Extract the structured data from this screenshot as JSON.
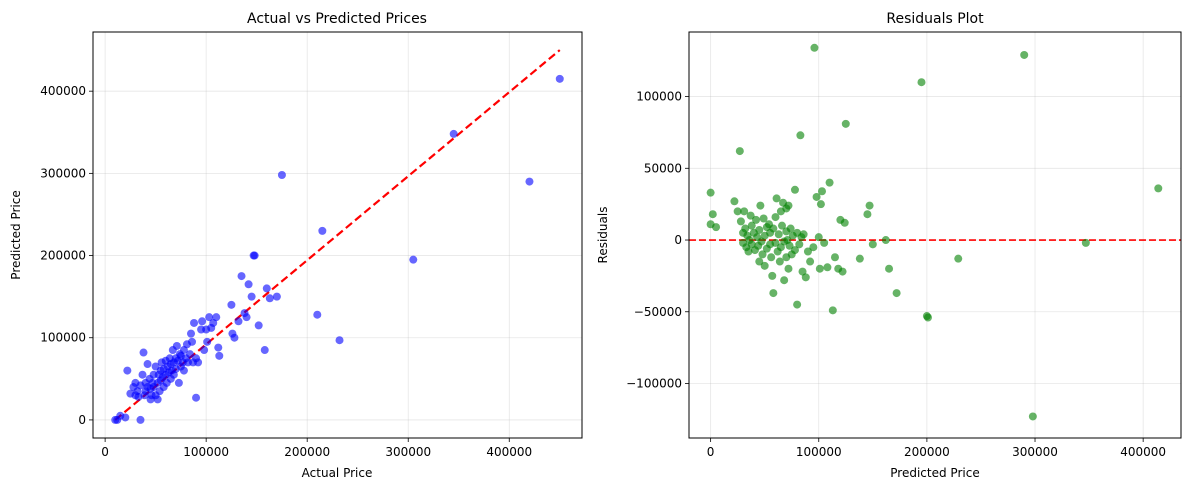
{
  "chart_data": [
    {
      "type": "scatter",
      "title": "Actual vs Predicted Prices",
      "xlabel": "Actual Price",
      "ylabel": "Predicted Price",
      "xlim": [
        -12000,
        472000
      ],
      "ylim": [
        -22000,
        472000
      ],
      "xticks": [
        0,
        100000,
        200000,
        300000,
        400000
      ],
      "yticks": [
        0,
        100000,
        200000,
        300000,
        400000
      ],
      "xtick_labels": [
        "0",
        "100000",
        "200000",
        "300000",
        "400000"
      ],
      "ytick_labels": [
        "0",
        "100000",
        "200000",
        "300000",
        "400000"
      ],
      "grid": true,
      "point_color": "#0000ff",
      "line_color": "#ff0000",
      "reference_line": {
        "x": [
          10000,
          450000
        ],
        "y": [
          0,
          450000
        ]
      },
      "points": [
        {
          "x": 10000,
          "y": 0
        },
        {
          "x": 12000,
          "y": 0
        },
        {
          "x": 15000,
          "y": 5000
        },
        {
          "x": 20000,
          "y": 3000
        },
        {
          "x": 22000,
          "y": 60000
        },
        {
          "x": 25000,
          "y": 32000
        },
        {
          "x": 28000,
          "y": 40000
        },
        {
          "x": 30000,
          "y": 30000
        },
        {
          "x": 30000,
          "y": 45000
        },
        {
          "x": 32000,
          "y": 35000
        },
        {
          "x": 33000,
          "y": 28000
        },
        {
          "x": 35000,
          "y": 0
        },
        {
          "x": 35000,
          "y": 42000
        },
        {
          "x": 37000,
          "y": 55000
        },
        {
          "x": 38000,
          "y": 82000
        },
        {
          "x": 39000,
          "y": 30000
        },
        {
          "x": 40000,
          "y": 45000
        },
        {
          "x": 40000,
          "y": 35000
        },
        {
          "x": 42000,
          "y": 40000
        },
        {
          "x": 42000,
          "y": 68000
        },
        {
          "x": 44000,
          "y": 50000
        },
        {
          "x": 45000,
          "y": 38000
        },
        {
          "x": 45000,
          "y": 25000
        },
        {
          "x": 46000,
          "y": 30000
        },
        {
          "x": 47000,
          "y": 45000
        },
        {
          "x": 48000,
          "y": 55000
        },
        {
          "x": 48000,
          "y": 40000
        },
        {
          "x": 50000,
          "y": 30000
        },
        {
          "x": 50000,
          "y": 65000
        },
        {
          "x": 52000,
          "y": 45000
        },
        {
          "x": 52000,
          "y": 25000
        },
        {
          "x": 53000,
          "y": 55000
        },
        {
          "x": 54000,
          "y": 35000
        },
        {
          "x": 55000,
          "y": 60000
        },
        {
          "x": 55000,
          "y": 48000
        },
        {
          "x": 56000,
          "y": 70000
        },
        {
          "x": 57000,
          "y": 52000
        },
        {
          "x": 58000,
          "y": 40000
        },
        {
          "x": 58000,
          "y": 62000
        },
        {
          "x": 60000,
          "y": 72000
        },
        {
          "x": 60000,
          "y": 55000
        },
        {
          "x": 61000,
          "y": 45000
        },
        {
          "x": 62000,
          "y": 65000
        },
        {
          "x": 63000,
          "y": 58000
        },
        {
          "x": 64000,
          "y": 75000
        },
        {
          "x": 65000,
          "y": 50000
        },
        {
          "x": 65000,
          "y": 68000
        },
        {
          "x": 66000,
          "y": 60000
        },
        {
          "x": 67000,
          "y": 85000
        },
        {
          "x": 68000,
          "y": 70000
        },
        {
          "x": 68000,
          "y": 55000
        },
        {
          "x": 70000,
          "y": 75000
        },
        {
          "x": 70000,
          "y": 62000
        },
        {
          "x": 71000,
          "y": 90000
        },
        {
          "x": 72000,
          "y": 72000
        },
        {
          "x": 73000,
          "y": 45000
        },
        {
          "x": 74000,
          "y": 80000
        },
        {
          "x": 75000,
          "y": 65000
        },
        {
          "x": 75000,
          "y": 78000
        },
        {
          "x": 77000,
          "y": 70000
        },
        {
          "x": 78000,
          "y": 85000
        },
        {
          "x": 78000,
          "y": 60000
        },
        {
          "x": 80000,
          "y": 75000
        },
        {
          "x": 81000,
          "y": 92000
        },
        {
          "x": 82000,
          "y": 70000
        },
        {
          "x": 84000,
          "y": 80000
        },
        {
          "x": 85000,
          "y": 105000
        },
        {
          "x": 86000,
          "y": 95000
        },
        {
          "x": 87000,
          "y": 70000
        },
        {
          "x": 88000,
          "y": 118000
        },
        {
          "x": 90000,
          "y": 75000
        },
        {
          "x": 90000,
          "y": 27000
        },
        {
          "x": 92000,
          "y": 70000
        },
        {
          "x": 95000,
          "y": 110000
        },
        {
          "x": 96000,
          "y": 120000
        },
        {
          "x": 98000,
          "y": 85000
        },
        {
          "x": 100000,
          "y": 110000
        },
        {
          "x": 101000,
          "y": 95000
        },
        {
          "x": 103000,
          "y": 125000
        },
        {
          "x": 105000,
          "y": 112000
        },
        {
          "x": 107000,
          "y": 118000
        },
        {
          "x": 110000,
          "y": 125000
        },
        {
          "x": 112000,
          "y": 88000
        },
        {
          "x": 113000,
          "y": 78000
        },
        {
          "x": 125000,
          "y": 140000
        },
        {
          "x": 126000,
          "y": 105000
        },
        {
          "x": 128000,
          "y": 100000
        },
        {
          "x": 132000,
          "y": 120000
        },
        {
          "x": 135000,
          "y": 175000
        },
        {
          "x": 138000,
          "y": 130000
        },
        {
          "x": 140000,
          "y": 125000
        },
        {
          "x": 142000,
          "y": 165000
        },
        {
          "x": 145000,
          "y": 150000
        },
        {
          "x": 147000,
          "y": 200000
        },
        {
          "x": 148000,
          "y": 200000
        },
        {
          "x": 152000,
          "y": 115000
        },
        {
          "x": 158000,
          "y": 85000
        },
        {
          "x": 160000,
          "y": 160000
        },
        {
          "x": 163000,
          "y": 148000
        },
        {
          "x": 170000,
          "y": 150000
        },
        {
          "x": 175000,
          "y": 298000
        },
        {
          "x": 210000,
          "y": 128000
        },
        {
          "x": 215000,
          "y": 230000
        },
        {
          "x": 232000,
          "y": 97000
        },
        {
          "x": 305000,
          "y": 195000
        },
        {
          "x": 345000,
          "y": 348000
        },
        {
          "x": 420000,
          "y": 290000
        },
        {
          "x": 450000,
          "y": 415000
        }
      ]
    },
    {
      "type": "scatter",
      "title": "Residuals Plot",
      "xlabel": "Predicted Price",
      "ylabel": "Residuals",
      "xlim": [
        -20000,
        435000
      ],
      "ylim": [
        -138000,
        145000
      ],
      "xticks": [
        0,
        100000,
        200000,
        300000,
        400000
      ],
      "yticks": [
        -100000,
        -50000,
        0,
        50000,
        100000
      ],
      "xtick_labels": [
        "0",
        "100000",
        "200000",
        "300000",
        "400000"
      ],
      "ytick_labels": [
        "−100000",
        "−50000",
        "0",
        "50000",
        "100000"
      ],
      "grid": true,
      "point_color": "#008000",
      "line_color": "#ff0000",
      "reference_line": {
        "y": 0
      },
      "points": [
        {
          "x": 0,
          "y": 33000
        },
        {
          "x": 0,
          "y": 11000
        },
        {
          "x": 2000,
          "y": 18000
        },
        {
          "x": 5000,
          "y": 9000
        },
        {
          "x": 22000,
          "y": 27000
        },
        {
          "x": 25000,
          "y": 20000
        },
        {
          "x": 27000,
          "y": 62000
        },
        {
          "x": 28000,
          "y": 13000
        },
        {
          "x": 30000,
          "y": 5000
        },
        {
          "x": 30000,
          "y": -2000
        },
        {
          "x": 31000,
          "y": 20000
        },
        {
          "x": 32000,
          "y": 8000
        },
        {
          "x": 33000,
          "y": -5000
        },
        {
          "x": 34000,
          "y": 3000
        },
        {
          "x": 35000,
          "y": -8000
        },
        {
          "x": 36000,
          "y": 0
        },
        {
          "x": 37000,
          "y": 17000
        },
        {
          "x": 38000,
          "y": 10000
        },
        {
          "x": 38000,
          "y": -3000
        },
        {
          "x": 40000,
          "y": 5000
        },
        {
          "x": 41000,
          "y": -7000
        },
        {
          "x": 42000,
          "y": 14000
        },
        {
          "x": 43000,
          "y": 2000
        },
        {
          "x": 44000,
          "y": -4000
        },
        {
          "x": 45000,
          "y": -15000
        },
        {
          "x": 45000,
          "y": 7000
        },
        {
          "x": 46000,
          "y": 24000
        },
        {
          "x": 47000,
          "y": -1000
        },
        {
          "x": 48000,
          "y": -10000
        },
        {
          "x": 49000,
          "y": 15000
        },
        {
          "x": 50000,
          "y": 3000
        },
        {
          "x": 50000,
          "y": -18000
        },
        {
          "x": 52000,
          "y": 9000
        },
        {
          "x": 52000,
          "y": -6000
        },
        {
          "x": 54000,
          "y": 11000
        },
        {
          "x": 55000,
          "y": -3000
        },
        {
          "x": 55000,
          "y": 5000
        },
        {
          "x": 56000,
          "y": -12000
        },
        {
          "x": 57000,
          "y": -25000
        },
        {
          "x": 58000,
          "y": -37000
        },
        {
          "x": 58000,
          "y": 8000
        },
        {
          "x": 60000,
          "y": -2000
        },
        {
          "x": 60000,
          "y": 16000
        },
        {
          "x": 61000,
          "y": 29000
        },
        {
          "x": 62000,
          "y": -8000
        },
        {
          "x": 63000,
          "y": 4000
        },
        {
          "x": 64000,
          "y": -15000
        },
        {
          "x": 65000,
          "y": 20000
        },
        {
          "x": 65000,
          "y": -5000
        },
        {
          "x": 66000,
          "y": 10000
        },
        {
          "x": 67000,
          "y": 26000
        },
        {
          "x": 68000,
          "y": -1000
        },
        {
          "x": 68000,
          "y": -28000
        },
        {
          "x": 70000,
          "y": 22000
        },
        {
          "x": 70000,
          "y": 6000
        },
        {
          "x": 70000,
          "y": -12000
        },
        {
          "x": 71000,
          "y": 0
        },
        {
          "x": 72000,
          "y": 24000
        },
        {
          "x": 72000,
          "y": -20000
        },
        {
          "x": 73000,
          "y": -4000
        },
        {
          "x": 74000,
          "y": 8000
        },
        {
          "x": 75000,
          "y": -10000
        },
        {
          "x": 76000,
          "y": 3000
        },
        {
          "x": 78000,
          "y": 35000
        },
        {
          "x": 78000,
          "y": -7000
        },
        {
          "x": 80000,
          "y": 5000
        },
        {
          "x": 80000,
          "y": -45000
        },
        {
          "x": 82000,
          "y": -3000
        },
        {
          "x": 83000,
          "y": 73000
        },
        {
          "x": 84000,
          "y": 2000
        },
        {
          "x": 85000,
          "y": -22000
        },
        {
          "x": 86000,
          "y": 4000
        },
        {
          "x": 88000,
          "y": -26000
        },
        {
          "x": 90000,
          "y": -8000
        },
        {
          "x": 92000,
          "y": -15000
        },
        {
          "x": 95000,
          "y": -5000
        },
        {
          "x": 96000,
          "y": 134000
        },
        {
          "x": 98000,
          "y": 30000
        },
        {
          "x": 100000,
          "y": 2000
        },
        {
          "x": 101000,
          "y": -20000
        },
        {
          "x": 102000,
          "y": 25000
        },
        {
          "x": 103000,
          "y": 34000
        },
        {
          "x": 105000,
          "y": -2000
        },
        {
          "x": 108000,
          "y": -19000
        },
        {
          "x": 110000,
          "y": 40000
        },
        {
          "x": 113000,
          "y": -49000
        },
        {
          "x": 115000,
          "y": -12000
        },
        {
          "x": 118000,
          "y": -20000
        },
        {
          "x": 120000,
          "y": 14000
        },
        {
          "x": 122000,
          "y": -22000
        },
        {
          "x": 124000,
          "y": 12000
        },
        {
          "x": 125000,
          "y": 81000
        },
        {
          "x": 138000,
          "y": -13000
        },
        {
          "x": 145000,
          "y": 18000
        },
        {
          "x": 147000,
          "y": 24000
        },
        {
          "x": 150000,
          "y": -3000
        },
        {
          "x": 162000,
          "y": 0
        },
        {
          "x": 165000,
          "y": -20000
        },
        {
          "x": 172000,
          "y": -37000
        },
        {
          "x": 195000,
          "y": 110000
        },
        {
          "x": 200000,
          "y": -53000
        },
        {
          "x": 201000,
          "y": -54000
        },
        {
          "x": 229000,
          "y": -13000
        },
        {
          "x": 290000,
          "y": 129000
        },
        {
          "x": 298000,
          "y": -123000
        },
        {
          "x": 347000,
          "y": -2000
        },
        {
          "x": 414000,
          "y": 36000
        }
      ]
    }
  ]
}
